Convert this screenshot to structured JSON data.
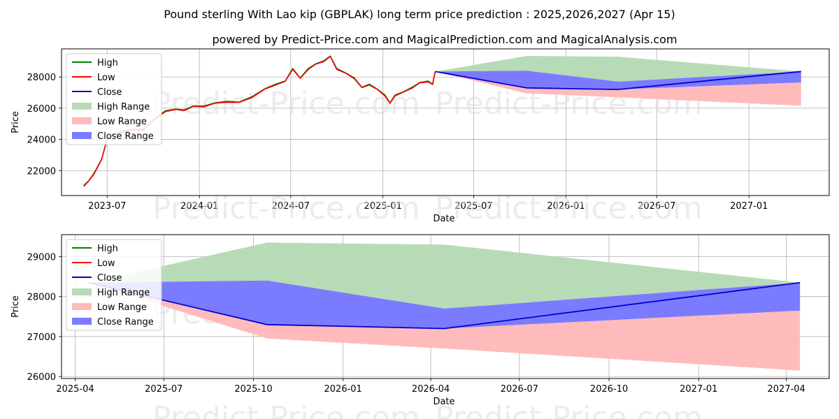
{
  "title": "Pound sterling With Lao kip (GBPLAK) long term price prediction : 2025,2026,2027 (Apr 15)",
  "subtitle": "powered by Predict-Price.com and MagicalPrediction.com and MagicalAnalysis.com",
  "watermark": "Predict-Price.com",
  "colors": {
    "high": "#008000",
    "low": "#ff0000",
    "close": "#0000cc",
    "high_range": "#b7dbb7",
    "low_range": "#ffbbbb",
    "close_range": "#7b7bff"
  },
  "chart_data": [
    {
      "type": "line",
      "xlabel": "Date",
      "ylabel": "Price",
      "xlim": [
        "2023-04-01",
        "2027-06-10"
      ],
      "ylim": [
        20400,
        29800
      ],
      "yticks": [
        22000,
        24000,
        26000,
        28000
      ],
      "xticks": [
        {
          "date": "2023-07-01",
          "label": "2023-07"
        },
        {
          "date": "2024-01-01",
          "label": "2024-01"
        },
        {
          "date": "2024-07-01",
          "label": "2024-07"
        },
        {
          "date": "2025-01-01",
          "label": "2025-01"
        },
        {
          "date": "2025-07-01",
          "label": "2025-07"
        },
        {
          "date": "2026-01-01",
          "label": "2026-01"
        },
        {
          "date": "2026-07-01",
          "label": "2026-07"
        },
        {
          "date": "2027-01-01",
          "label": "2027-01"
        }
      ],
      "grid": true,
      "legend": {
        "position": "top-left",
        "entries": [
          "High",
          "Low",
          "Close",
          "High Range",
          "Low Range",
          "Close Range"
        ]
      },
      "history": {
        "dates": [
          "2023-05-15",
          "2023-05-25",
          "2023-06-05",
          "2023-06-20",
          "2023-07-01",
          "2023-07-15",
          "2023-08-01",
          "2023-08-20",
          "2023-09-10",
          "2023-10-01",
          "2023-10-25",
          "2023-11-15",
          "2023-12-01",
          "2023-12-20",
          "2024-01-10",
          "2024-02-01",
          "2024-02-25",
          "2024-03-20",
          "2024-04-15",
          "2024-05-10",
          "2024-06-01",
          "2024-06-20",
          "2024-07-05",
          "2024-07-20",
          "2024-08-05",
          "2024-08-20",
          "2024-09-05",
          "2024-09-18",
          "2024-10-01",
          "2024-10-20",
          "2024-11-05",
          "2024-11-20",
          "2024-12-05",
          "2024-12-20",
          "2025-01-05",
          "2025-01-15",
          "2025-01-25",
          "2025-02-10",
          "2025-02-28",
          "2025-03-15",
          "2025-04-01",
          "2025-04-10",
          "2025-04-15"
        ],
        "values": [
          21000,
          21300,
          21800,
          22700,
          24000,
          24300,
          24500,
          24600,
          24600,
          25200,
          25800,
          25900,
          25850,
          26100,
          26100,
          26300,
          26400,
          26350,
          26700,
          27200,
          27500,
          27700,
          28500,
          27900,
          28500,
          28800,
          29000,
          29300,
          28500,
          28200,
          27900,
          27300,
          27500,
          27200,
          26800,
          26300,
          26800,
          27000,
          27300,
          27600,
          27700,
          27500,
          28300
        ]
      },
      "forecast": {
        "dates": [
          "2025-04-15",
          "2025-10-15",
          "2026-04-15",
          "2027-04-15"
        ],
        "close": [
          28350,
          27300,
          27200,
          28350
        ],
        "high_range": {
          "upper": [
            28350,
            29350,
            29300,
            28350
          ],
          "lower": [
            28350,
            28400,
            27700,
            28350
          ]
        },
        "low_range": {
          "upper": [
            28350,
            27300,
            27200,
            27650
          ],
          "lower": [
            28350,
            26950,
            26700,
            26150
          ]
        },
        "close_range": {
          "upper": [
            28350,
            28400,
            27700,
            28350
          ],
          "lower": [
            28350,
            27300,
            27200,
            27650
          ]
        }
      }
    },
    {
      "type": "line",
      "xlabel": "Date",
      "ylabel": "Price",
      "xlim": [
        "2025-03-18",
        "2027-05-15"
      ],
      "ylim": [
        25950,
        29550
      ],
      "yticks": [
        26000,
        27000,
        28000,
        29000
      ],
      "xticks": [
        {
          "date": "2025-04-01",
          "label": "2025-04"
        },
        {
          "date": "2025-07-01",
          "label": "2025-07"
        },
        {
          "date": "2025-10-01",
          "label": "2025-10"
        },
        {
          "date": "2026-01-01",
          "label": "2026-01"
        },
        {
          "date": "2026-04-01",
          "label": "2026-04"
        },
        {
          "date": "2026-07-01",
          "label": "2026-07"
        },
        {
          "date": "2026-10-01",
          "label": "2026-10"
        },
        {
          "date": "2027-01-01",
          "label": "2027-01"
        },
        {
          "date": "2027-04-01",
          "label": "2027-04"
        }
      ],
      "grid": true,
      "legend": {
        "position": "top-left",
        "entries": [
          "High",
          "Low",
          "Close",
          "High Range",
          "Low Range",
          "Close Range"
        ]
      },
      "forecast": {
        "dates": [
          "2025-04-15",
          "2025-10-15",
          "2026-04-15",
          "2027-04-15"
        ],
        "close": [
          28350,
          27300,
          27200,
          28350
        ],
        "high_range": {
          "upper": [
            28350,
            29350,
            29300,
            28350
          ],
          "lower": [
            28350,
            28400,
            27700,
            28350
          ]
        },
        "low_range": {
          "upper": [
            28350,
            27300,
            27200,
            27650
          ],
          "lower": [
            28350,
            26950,
            26700,
            26150
          ]
        },
        "close_range": {
          "upper": [
            28350,
            28400,
            27700,
            28350
          ],
          "lower": [
            28350,
            27300,
            27200,
            27650
          ]
        }
      }
    }
  ]
}
